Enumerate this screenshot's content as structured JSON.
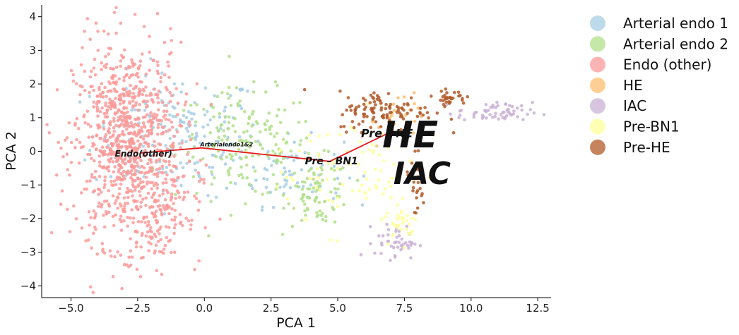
{
  "chart_data": {
    "type": "scatter",
    "xlabel": "PCA 1",
    "ylabel": "PCA 2",
    "xlim": [
      -6.1,
      13.0
    ],
    "ylim": [
      -4.35,
      4.35
    ],
    "xticks": [
      -5.0,
      -2.5,
      0.0,
      2.5,
      5.0,
      7.5,
      10.0,
      12.5
    ],
    "xtick_labels": [
      "−5.0",
      "−2.5",
      "0.0",
      "2.5",
      "5.0",
      "7.5",
      "10.0",
      "12.5"
    ],
    "yticks": [
      -4,
      -3,
      -2,
      -1,
      0,
      1,
      2,
      3,
      4
    ],
    "ytick_labels": [
      "−4",
      "−3",
      "−2",
      "−1",
      "0",
      "1",
      "2",
      "3",
      "4"
    ],
    "grid": false,
    "legend_position": "outside-right",
    "series": [
      {
        "name": "Arterial endo 1",
        "color": "#a6cee3",
        "clusters": [
          {
            "cx": -1.0,
            "cy": 0.5,
            "sx": 1.6,
            "sy": 0.9,
            "n": 180
          },
          {
            "cx": 3.2,
            "cy": -0.6,
            "sx": 1.0,
            "sy": 0.5,
            "n": 70
          }
        ]
      },
      {
        "name": "Arterial endo 2",
        "color": "#b2df8a",
        "clusters": [
          {
            "cx": 1.5,
            "cy": 0.2,
            "sx": 1.3,
            "sy": 0.8,
            "n": 170
          },
          {
            "cx": 4.3,
            "cy": -1.2,
            "sx": 0.6,
            "sy": 0.5,
            "n": 80
          }
        ]
      },
      {
        "name": "Endo (other)",
        "color": "#fb9a99",
        "clusters": [
          {
            "cx": -2.9,
            "cy": 0.2,
            "sx": 1.0,
            "sy": 1.5,
            "n": 900
          },
          {
            "cx": -1.7,
            "cy": -1.8,
            "sx": 0.8,
            "sy": 0.8,
            "n": 120
          }
        ]
      },
      {
        "name": "HE",
        "color": "#fdbf6f",
        "clusters": [
          {
            "cx": 7.2,
            "cy": 0.9,
            "sx": 0.5,
            "sy": 0.4,
            "n": 25
          }
        ]
      },
      {
        "name": "IAC",
        "color": "#cab2d6",
        "clusters": [
          {
            "cx": 10.9,
            "cy": 1.15,
            "sx": 0.7,
            "sy": 0.15,
            "n": 60
          },
          {
            "cx": 7.2,
            "cy": -2.7,
            "sx": 0.4,
            "sy": 0.25,
            "n": 45
          }
        ]
      },
      {
        "name": "Pre-BN1",
        "color": "#ffff99",
        "clusters": [
          {
            "cx": 5.5,
            "cy": -0.5,
            "sx": 1.5,
            "sy": 0.9,
            "n": 80
          },
          {
            "cx": 7.4,
            "cy": -2.1,
            "sx": 0.3,
            "sy": 0.3,
            "n": 30
          }
        ]
      },
      {
        "name": "Pre-HE",
        "color": "#b15928",
        "clusters": [
          {
            "cx": 6.8,
            "cy": 1.2,
            "sx": 0.9,
            "sy": 0.3,
            "n": 110
          },
          {
            "cx": 9.2,
            "cy": 1.6,
            "sx": 0.3,
            "sy": 0.1,
            "n": 30
          },
          {
            "cx": 7.9,
            "cy": -0.9,
            "sx": 0.2,
            "sy": 0.6,
            "n": 30
          }
        ]
      }
    ],
    "trajectory": [
      {
        "label": "Endo(other)",
        "x": -2.4,
        "y": -0.05
      },
      {
        "label": "Arterialendo1&2",
        "x": -0.1,
        "y": 0.1
      },
      {
        "label": "Pre – BN1",
        "x": 4.7,
        "y": -0.3
      },
      {
        "label": "Pre – HE",
        "x": 6.8,
        "y": 0.5
      },
      {
        "label": "HE",
        "x": 7.6,
        "y": 0.45
      },
      {
        "label": "IAC",
        "x": 7.8,
        "y": -0.6
      }
    ]
  }
}
